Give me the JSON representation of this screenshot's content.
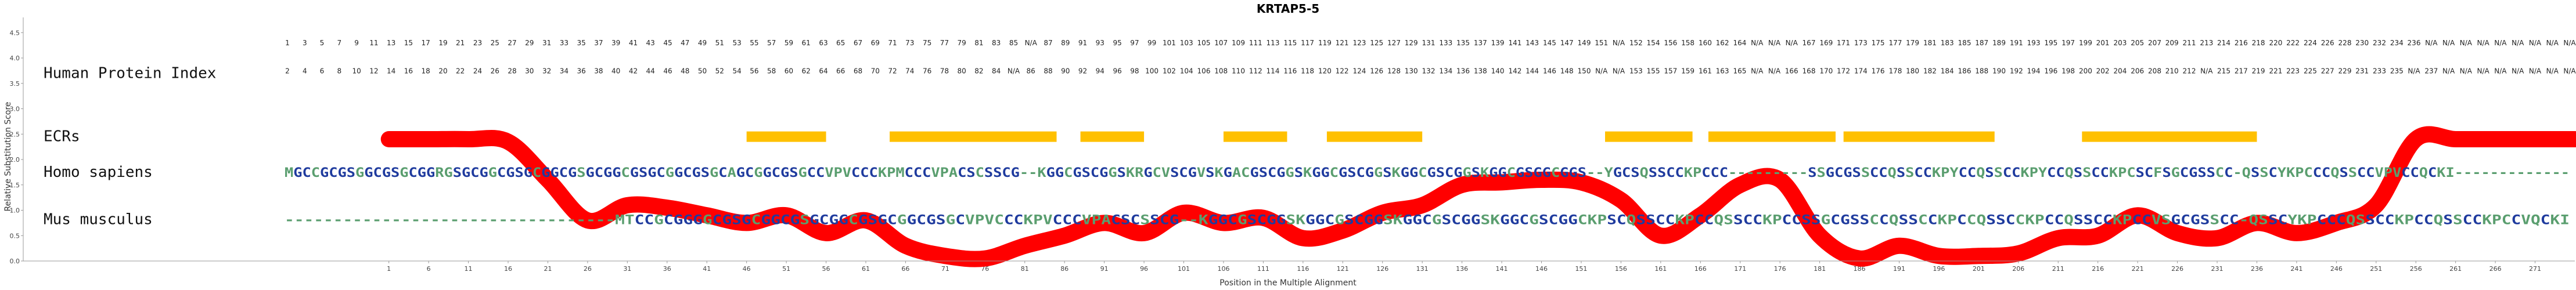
{
  "chart_data": {
    "type": "line",
    "title": "KRTAP5-5",
    "xlabel": "Position in the Multiple Alignment",
    "ylabel": "Relative Substitution Score",
    "xlim": [
      -45,
      276
    ],
    "ylim": [
      0,
      4.8
    ],
    "y_ticks": [
      "0.0",
      "0.5",
      "1.0",
      "1.5",
      "2.0",
      "2.5",
      "3.0",
      "3.5",
      "4.0",
      "4.5"
    ],
    "y_tick_values": [
      0,
      0.5,
      1.0,
      1.5,
      2.0,
      2.5,
      3.0,
      3.5,
      4.0,
      4.5
    ],
    "x_ticks": [
      "1",
      "6",
      "11",
      "16",
      "21",
      "26",
      "31",
      "36",
      "41",
      "46",
      "51",
      "56",
      "61",
      "66",
      "71",
      "76",
      "81",
      "86",
      "91",
      "96",
      "101",
      "106",
      "111",
      "116",
      "121",
      "126",
      "131",
      "136",
      "141",
      "146",
      "151",
      "156",
      "161",
      "166",
      "171",
      "176",
      "181",
      "186",
      "191",
      "196",
      "201",
      "206",
      "211",
      "216",
      "221",
      "226",
      "231",
      "236",
      "241",
      "246",
      "251",
      "256",
      "261",
      "266",
      "271"
    ],
    "x_tick_values": [
      1,
      6,
      11,
      16,
      21,
      26,
      31,
      36,
      41,
      46,
      51,
      56,
      61,
      66,
      71,
      76,
      81,
      86,
      91,
      96,
      101,
      106,
      111,
      116,
      121,
      126,
      131,
      136,
      141,
      146,
      151,
      156,
      161,
      166,
      171,
      176,
      181,
      186,
      191,
      196,
      201,
      206,
      211,
      216,
      221,
      226,
      231,
      236,
      241,
      246,
      251,
      256,
      261,
      266,
      271
    ],
    "grid": false,
    "series": [
      {
        "x": [
          1,
          6,
          11,
          16,
          21,
          26,
          31,
          36,
          41,
          46,
          51,
          56,
          61,
          66,
          71,
          76,
          81,
          86,
          91,
          96,
          101,
          106,
          111,
          116,
          121,
          126,
          131,
          136,
          141,
          146,
          151,
          156,
          161,
          166,
          171,
          176,
          181,
          186,
          191,
          196,
          201,
          206,
          211,
          216,
          221,
          226,
          231,
          236,
          241,
          246,
          251,
          256,
          261,
          266,
          271,
          276
        ],
        "y": [
          2.4,
          2.4,
          2.4,
          2.35,
          1.6,
          0.8,
          1.1,
          1.05,
          0.9,
          0.75,
          0.9,
          0.55,
          0.8,
          0.3,
          0.1,
          0.05,
          0.3,
          0.5,
          0.75,
          0.55,
          0.95,
          0.75,
          0.85,
          0.45,
          0.6,
          0.95,
          1.1,
          1.5,
          1.55,
          1.6,
          1.55,
          1.2,
          0.5,
          0.9,
          1.5,
          1.6,
          0.5,
          0.05,
          0.3,
          0.1,
          0.1,
          0.15,
          0.45,
          0.5,
          0.9,
          0.55,
          0.45,
          0.75,
          0.55,
          0.75,
          1.1,
          2.4,
          2.4,
          2.4,
          2.4,
          2.4
        ]
      }
    ],
    "ecr_label": "ECRs",
    "ecr_y": 2.45,
    "ecrs": [
      [
        46,
        56
      ],
      [
        64,
        85
      ],
      [
        88,
        96
      ],
      [
        106,
        114
      ],
      [
        119,
        131
      ],
      [
        154,
        165
      ],
      [
        167,
        183
      ],
      [
        184,
        203
      ],
      [
        214,
        236
      ]
    ],
    "index_label": "Human Protein Index",
    "index_row1_y": 4.25,
    "index_row2_y": 3.7,
    "index_row1": [
      "1",
      "3",
      "5",
      "7",
      "9",
      "11",
      "13",
      "15",
      "17",
      "19",
      "21",
      "23",
      "25",
      "27",
      "29",
      "31",
      "33",
      "35",
      "37",
      "39",
      "41",
      "43",
      "45",
      "47",
      "49",
      "51",
      "53",
      "55",
      "57",
      "59",
      "61",
      "63",
      "65",
      "67",
      "69",
      "71",
      "73",
      "75",
      "77",
      "79",
      "81",
      "83",
      "85",
      "N/A",
      "87",
      "89",
      "91",
      "93",
      "95",
      "97",
      "99",
      "101",
      "103",
      "105",
      "107",
      "109",
      "111",
      "113",
      "115",
      "117",
      "119",
      "121",
      "123",
      "125",
      "127",
      "129",
      "131",
      "133",
      "135",
      "137",
      "139",
      "141",
      "143",
      "145",
      "147",
      "149",
      "151",
      "N/A",
      "152",
      "154",
      "156",
      "158",
      "160",
      "162",
      "164",
      "N/A",
      "N/A",
      "N/A",
      "167",
      "169",
      "171",
      "173",
      "175",
      "177",
      "179",
      "181",
      "183",
      "185",
      "187",
      "189",
      "191",
      "193",
      "195",
      "197",
      "199",
      "201",
      "203",
      "205",
      "207",
      "209",
      "211",
      "213",
      "214",
      "216",
      "218",
      "220",
      "222",
      "224",
      "226",
      "228",
      "230",
      "232",
      "234",
      "236",
      "N/A",
      "N/A",
      "N/A",
      "N/A",
      "N/A",
      "N/A",
      "N/A",
      "N/A",
      "N/A"
    ],
    "index_row2": [
      "2",
      "4",
      "6",
      "8",
      "10",
      "12",
      "14",
      "16",
      "18",
      "20",
      "22",
      "24",
      "26",
      "28",
      "30",
      "32",
      "34",
      "36",
      "38",
      "40",
      "42",
      "44",
      "46",
      "48",
      "50",
      "52",
      "54",
      "56",
      "58",
      "60",
      "62",
      "64",
      "66",
      "68",
      "70",
      "72",
      "74",
      "76",
      "78",
      "80",
      "82",
      "84",
      "N/A",
      "86",
      "88",
      "90",
      "92",
      "94",
      "96",
      "98",
      "100",
      "102",
      "104",
      "106",
      "108",
      "110",
      "112",
      "114",
      "116",
      "118",
      "120",
      "122",
      "124",
      "126",
      "128",
      "130",
      "132",
      "134",
      "136",
      "138",
      "140",
      "142",
      "144",
      "146",
      "148",
      "150",
      "N/A",
      "N/A",
      "153",
      "155",
      "157",
      "159",
      "161",
      "163",
      "165",
      "N/A",
      "N/A",
      "166",
      "168",
      "170",
      "172",
      "174",
      "176",
      "178",
      "180",
      "182",
      "184",
      "186",
      "188",
      "190",
      "192",
      "194",
      "196",
      "198",
      "200",
      "202",
      "204",
      "206",
      "208",
      "210",
      "212",
      "N/A",
      "215",
      "217",
      "219",
      "221",
      "223",
      "225",
      "227",
      "229",
      "231",
      "233",
      "235",
      "N/A",
      "237",
      "N/A",
      "N/A",
      "N/A",
      "N/A",
      "N/A",
      "N/A",
      "N/A",
      "N/A"
    ],
    "sequences": [
      {
        "name": "Homo sapiens",
        "y": 1.75,
        "text": "MGCCGCGSGGCGSGCGGRGSGCGGCGSGCGGCGSGCGGCGSGCGGCGSGCAGCGGCGSGCCVPVCCCKPMCCCVPACSCSSCG--KGGCGSCGGSKRGCVSCGVSKGACGSCGGSKGGCGSCGGSKGGCGSCGGSKGGCGSGGCGGS--YGCSQSSCCKPCCC---------SSGCGSSCCQSSCCKPYCCQSSCCKPYCCQSSCCKPCSCFSGCGSSCC-QSSCYKPCCCQSSCCVPVCCQCKI-------------"
      },
      {
        "name": "Mus musculus",
        "y": 0.82,
        "text": "----------------------------------MTCCGCGGGGCGSGCGGCGSGCGGCGSGCGGCGSGCVPVCCCKPVCCCVPACSCSSCG--KGGCGSCGGSKGGCGSCGGSKGGCGSCGGSKGGCGSCGGCKPSCQSSCCKPCCQSSCCKPCCSSGCGSSCCQSSCCKPCCQSSCCKPCCQSSCCKPCCVSGCGSSCC-QSSCYKPCCCQSSCCKPCCQSSCCKPCCVQCKI"
      }
    ],
    "colors": {
      "curve": "#ff0000",
      "ecr": "#ffc000",
      "conserved": "#1f3b9e",
      "variable": "#5a9e6f",
      "gap": "#5a9e6f"
    }
  }
}
